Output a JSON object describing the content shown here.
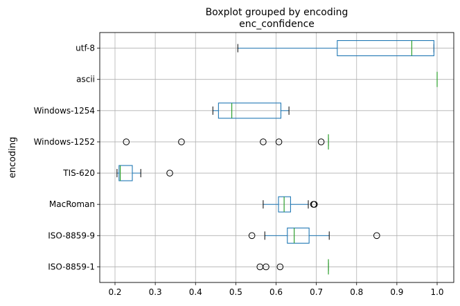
{
  "chart_data": {
    "type": "boxplot",
    "orientation": "horizontal",
    "title": "Boxplot grouped by encoding",
    "subtitle": "enc_confidence",
    "xlabel": "",
    "ylabel": "encoding",
    "xlim": [
      0.16,
      1.04
    ],
    "xticks": [
      "0.2",
      "0.3",
      "0.4",
      "0.5",
      "0.6",
      "0.7",
      "0.8",
      "0.9",
      "1.0"
    ],
    "grid": true,
    "colors": {
      "box": "#1f77b4",
      "median": "#2ca02c",
      "whisker": "#1f77b4",
      "cap": "#000000",
      "flier": "#000000"
    },
    "categories": [
      "ISO-8859-1",
      "ISO-8859-9",
      "MacRoman",
      "TIS-620",
      "Windows-1252",
      "Windows-1254",
      "ascii",
      "utf-8"
    ],
    "boxes": [
      {
        "label": "ISO-8859-1",
        "whislo": 0.73,
        "q1": 0.73,
        "med": 0.73,
        "q3": 0.73,
        "whishi": 0.73,
        "fliers": [
          0.56,
          0.575,
          0.61
        ]
      },
      {
        "label": "ISO-8859-9",
        "whislo": 0.572,
        "q1": 0.628,
        "med": 0.645,
        "q3": 0.682,
        "whishi": 0.732,
        "fliers": [
          0.54,
          0.85
        ]
      },
      {
        "label": "MacRoman",
        "whislo": 0.568,
        "q1": 0.606,
        "med": 0.62,
        "q3": 0.636,
        "whishi": 0.68,
        "fliers": [
          0.693,
          0.695
        ]
      },
      {
        "label": "TIS-620",
        "whislo": 0.205,
        "q1": 0.21,
        "med": 0.213,
        "q3": 0.243,
        "whishi": 0.264,
        "fliers": [
          0.336
        ]
      },
      {
        "label": "Windows-1252",
        "whislo": 0.73,
        "q1": 0.73,
        "med": 0.73,
        "q3": 0.73,
        "whishi": 0.73,
        "fliers": [
          0.228,
          0.365,
          0.568,
          0.607,
          0.712
        ]
      },
      {
        "label": "Windows-1254",
        "whislo": 0.443,
        "q1": 0.457,
        "med": 0.49,
        "q3": 0.612,
        "whishi": 0.632,
        "fliers": []
      },
      {
        "label": "ascii",
        "whislo": 1.0,
        "q1": 1.0,
        "med": 1.0,
        "q3": 1.0,
        "whishi": 1.0,
        "fliers": []
      },
      {
        "label": "utf-8",
        "whislo": 0.505,
        "q1": 0.752,
        "med": 0.937,
        "q3": 0.992,
        "whishi": 0.992,
        "fliers": []
      }
    ]
  }
}
